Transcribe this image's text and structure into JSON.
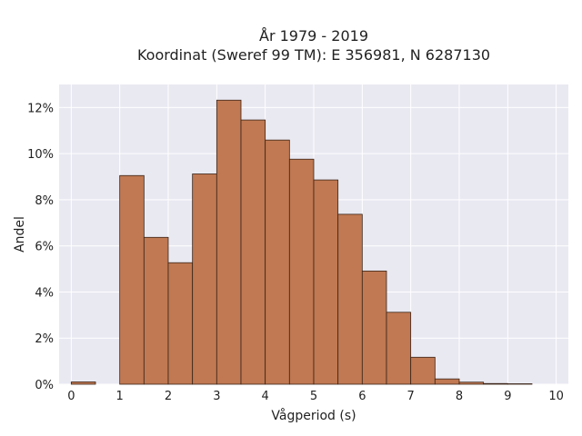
{
  "chart_data": {
    "type": "bar",
    "title_line1": "År 1979 - 2019",
    "title_line2": "Koordinat (Sweref 99 TM): E 356981, N 6287130",
    "xlabel": "Vågperiod (s)",
    "ylabel": "Andel",
    "xlim": [
      -0.25,
      10.25
    ],
    "ylim": [
      0,
      0.13
    ],
    "xticks": [
      0,
      1,
      2,
      3,
      4,
      5,
      6,
      7,
      8,
      9,
      10
    ],
    "yticks": [
      0,
      0.02,
      0.04,
      0.06,
      0.08,
      0.1,
      0.12
    ],
    "ytick_labels": [
      "0%",
      "2%",
      "4%",
      "6%",
      "8%",
      "10%",
      "12%"
    ],
    "bin_width": 0.5,
    "bins": [
      {
        "start": 0.0,
        "value": 0.001
      },
      {
        "start": 0.5,
        "value": 0.0
      },
      {
        "start": 1.0,
        "value": 0.0905
      },
      {
        "start": 1.5,
        "value": 0.0637
      },
      {
        "start": 2.0,
        "value": 0.0527
      },
      {
        "start": 2.5,
        "value": 0.0912
      },
      {
        "start": 3.0,
        "value": 0.1232
      },
      {
        "start": 3.5,
        "value": 0.1146
      },
      {
        "start": 4.0,
        "value": 0.1059
      },
      {
        "start": 4.5,
        "value": 0.0976
      },
      {
        "start": 5.0,
        "value": 0.0886
      },
      {
        "start": 5.5,
        "value": 0.0737
      },
      {
        "start": 6.0,
        "value": 0.0491
      },
      {
        "start": 6.5,
        "value": 0.0312
      },
      {
        "start": 7.0,
        "value": 0.0117
      },
      {
        "start": 7.5,
        "value": 0.0023
      },
      {
        "start": 8.0,
        "value": 0.0009
      },
      {
        "start": 8.5,
        "value": 0.0003
      },
      {
        "start": 9.0,
        "value": 0.0002
      }
    ],
    "grid": true,
    "colors": {
      "bar_fill": "#c07952",
      "bar_edge": "#3a2418",
      "plot_background": "#e9e9f2",
      "grid": "#ffffff"
    }
  }
}
